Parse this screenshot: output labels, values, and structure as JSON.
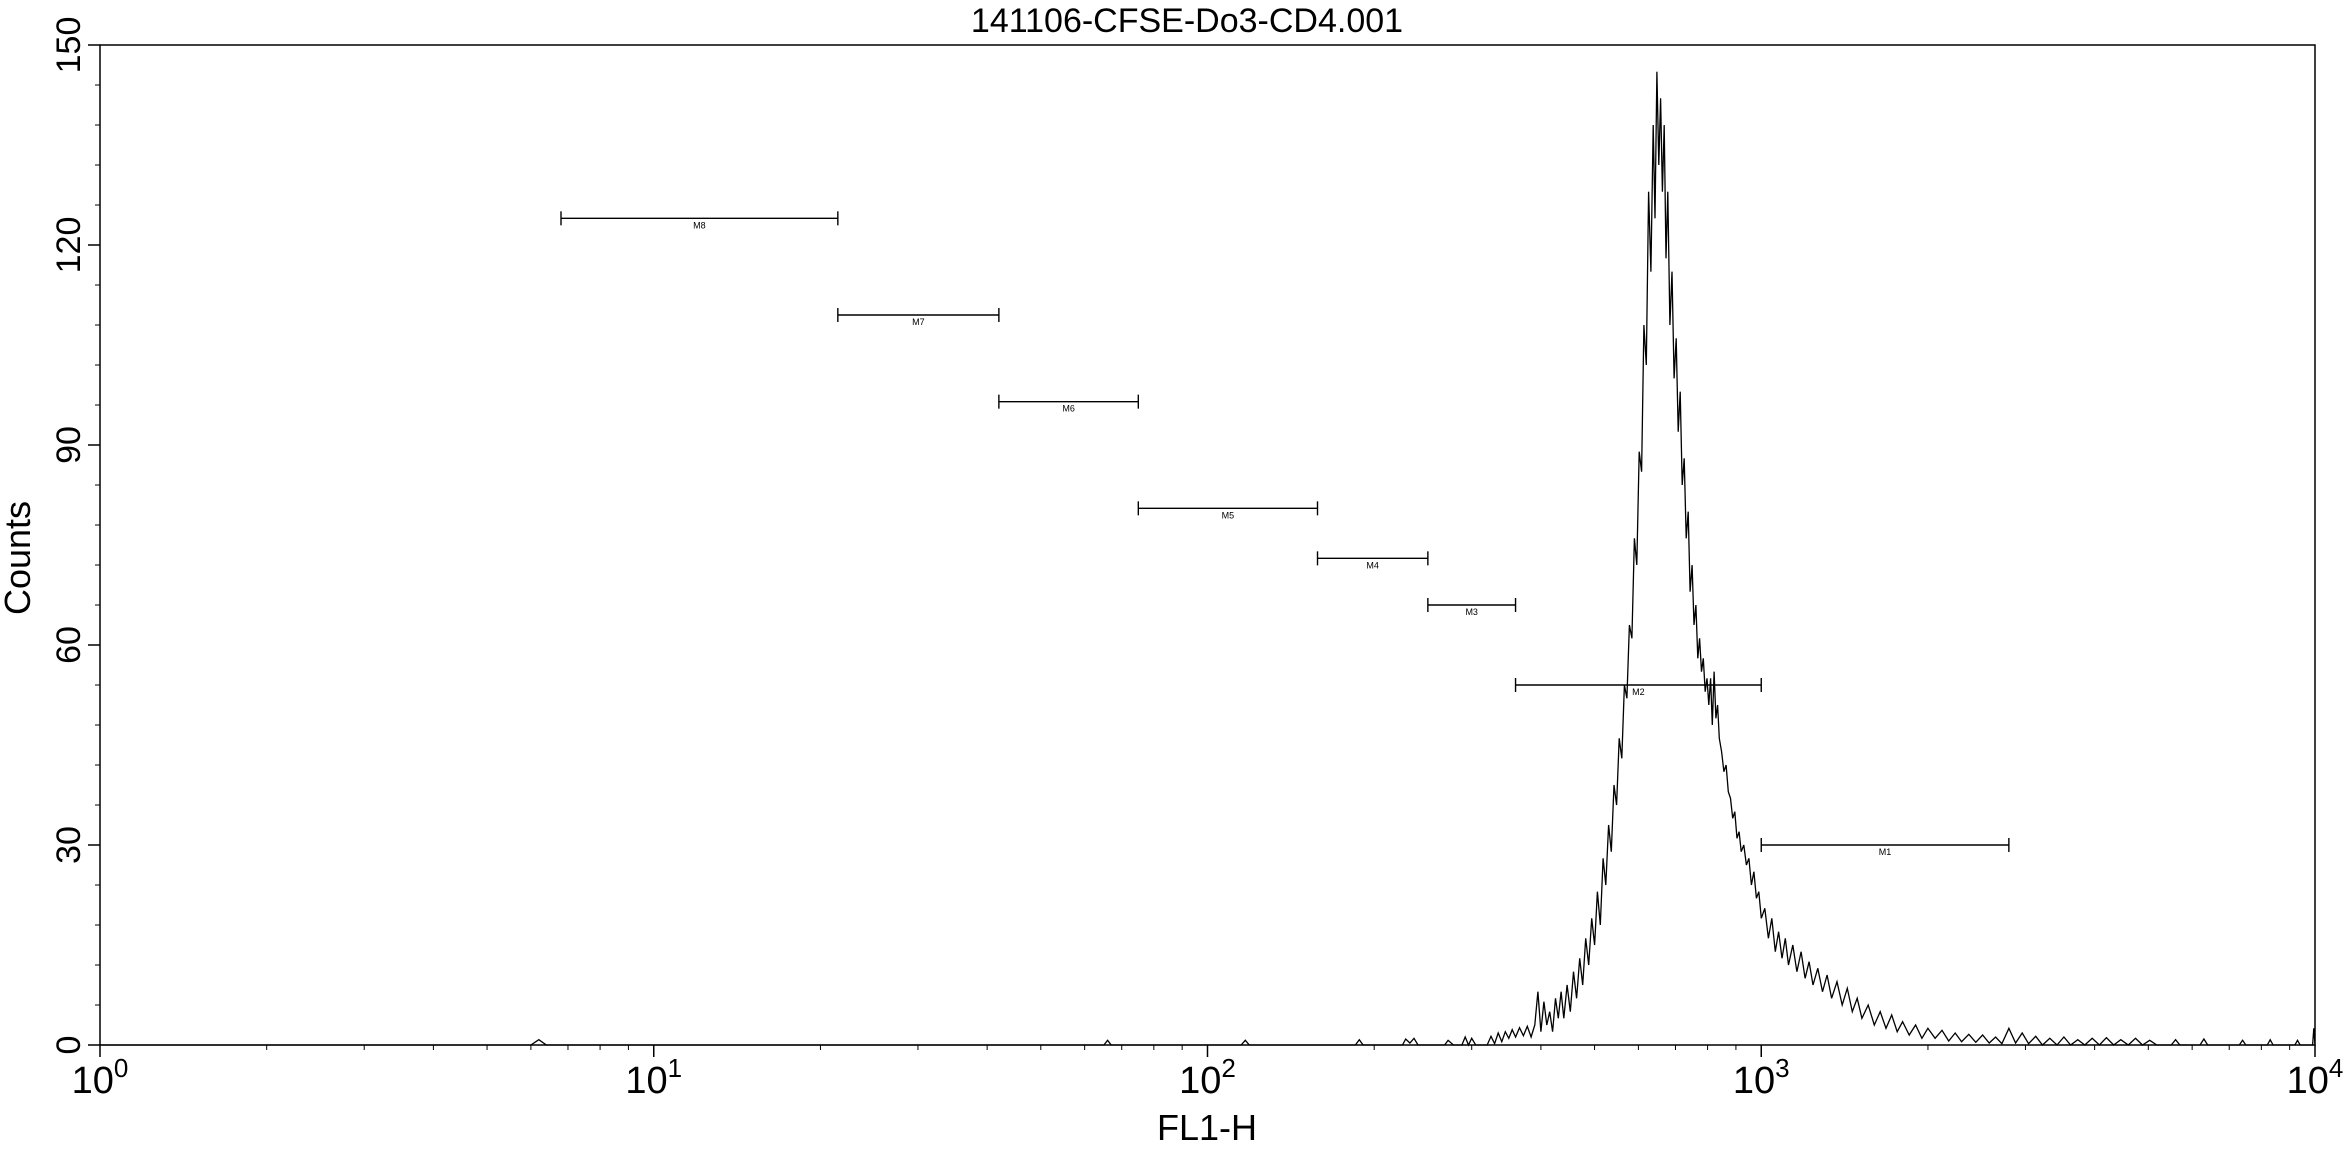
{
  "chart_data": {
    "type": "line",
    "title": "141106-CFSE-Do3-CD4.001",
    "xlabel": "FL1-H",
    "ylabel": "Counts",
    "x_scale": "log",
    "xlim": [
      1,
      10000
    ],
    "ylim": [
      0,
      150
    ],
    "x_ticks": [
      {
        "value": 1,
        "base": "10",
        "exp": "0"
      },
      {
        "value": 10,
        "base": "10",
        "exp": "1"
      },
      {
        "value": 100,
        "base": "10",
        "exp": "2"
      },
      {
        "value": 1000,
        "base": "10",
        "exp": "3"
      },
      {
        "value": 10000,
        "base": "10",
        "exp": "4"
      }
    ],
    "y_ticks": [
      {
        "value": 0,
        "label": "0"
      },
      {
        "value": 30,
        "label": "30"
      },
      {
        "value": 60,
        "label": "60"
      },
      {
        "value": 90,
        "label": "90"
      },
      {
        "value": 120,
        "label": "120"
      },
      {
        "value": 150,
        "label": "150"
      }
    ],
    "grid": false,
    "legend": "none",
    "line_color": "#000000",
    "markers": [
      {
        "label": "M1",
        "x_start": 1000,
        "x_end": 2800,
        "y": 30
      },
      {
        "label": "M2",
        "x_start": 360,
        "x_end": 1000,
        "y": 54
      },
      {
        "label": "M3",
        "x_start": 250,
        "x_end": 360,
        "y": 66
      },
      {
        "label": "M4",
        "x_start": 158,
        "x_end": 250,
        "y": 73
      },
      {
        "label": "M5",
        "x_start": 75,
        "x_end": 158,
        "y": 80.5
      },
      {
        "label": "M6",
        "x_start": 42,
        "x_end": 75,
        "y": 96.5
      },
      {
        "label": "M7",
        "x_start": 21.5,
        "x_end": 42,
        "y": 109.5
      },
      {
        "label": "M8",
        "x_start": 6.8,
        "x_end": 21.5,
        "y": 124
      }
    ],
    "series": [
      {
        "points": [
          [
            1,
            0
          ],
          [
            6.0,
            0
          ],
          [
            6.2,
            0.8
          ],
          [
            6.4,
            0
          ],
          [
            65,
            0
          ],
          [
            66,
            0.7
          ],
          [
            67,
            0
          ],
          [
            115,
            0
          ],
          [
            117,
            0.7
          ],
          [
            119,
            0
          ],
          [
            185,
            0
          ],
          [
            188,
            0.8
          ],
          [
            191,
            0
          ],
          [
            225,
            0
          ],
          [
            228,
            0.9
          ],
          [
            232,
            0.3
          ],
          [
            236,
            1.0
          ],
          [
            240,
            0
          ],
          [
            268,
            0
          ],
          [
            272,
            0.7
          ],
          [
            278,
            0
          ],
          [
            288,
            0
          ],
          [
            292,
            1.2
          ],
          [
            296,
            0
          ],
          [
            300,
            1.0
          ],
          [
            305,
            0
          ],
          [
            320,
            0
          ],
          [
            325,
            1.3
          ],
          [
            330,
            0.2
          ],
          [
            335,
            1.8
          ],
          [
            340,
            0.5
          ],
          [
            345,
            2.0
          ],
          [
            350,
            1.0
          ],
          [
            355,
            2.3
          ],
          [
            360,
            1.2
          ],
          [
            366,
            2.6
          ],
          [
            372,
            1.4
          ],
          [
            378,
            2.8
          ],
          [
            384,
            1.2
          ],
          [
            390,
            3.0
          ],
          [
            395,
            8.0
          ],
          [
            400,
            2.0
          ],
          [
            405,
            6.5
          ],
          [
            410,
            3.0
          ],
          [
            415,
            5.0
          ],
          [
            420,
            2.0
          ],
          [
            425,
            7.0
          ],
          [
            430,
            4.0
          ],
          [
            435,
            8.0
          ],
          [
            440,
            4.0
          ],
          [
            446,
            9.0
          ],
          [
            452,
            5.0
          ],
          [
            458,
            11.0
          ],
          [
            464,
            7.0
          ],
          [
            470,
            13.0
          ],
          [
            476,
            9.0
          ],
          [
            482,
            16.0
          ],
          [
            488,
            12.0
          ],
          [
            494,
            19.0
          ],
          [
            500,
            15.0
          ],
          [
            506,
            23.0
          ],
          [
            512,
            18.0
          ],
          [
            518,
            28.0
          ],
          [
            524,
            24.0
          ],
          [
            530,
            33.0
          ],
          [
            536,
            29.0
          ],
          [
            542,
            39.0
          ],
          [
            548,
            36.0
          ],
          [
            554,
            46.0
          ],
          [
            560,
            43.0
          ],
          [
            566,
            54.0
          ],
          [
            572,
            52.0
          ],
          [
            578,
            63.0
          ],
          [
            584,
            61.0
          ],
          [
            590,
            76.0
          ],
          [
            596,
            72.0
          ],
          [
            602,
            89.0
          ],
          [
            608,
            86.0
          ],
          [
            614,
            108.0
          ],
          [
            620,
            102.0
          ],
          [
            626,
            128.0
          ],
          [
            632,
            116.0
          ],
          [
            638,
            138.0
          ],
          [
            643,
            124.0
          ],
          [
            648,
            146.0
          ],
          [
            653,
            132.0
          ],
          [
            658,
            142.0
          ],
          [
            663,
            128.0
          ],
          [
            668,
            138.0
          ],
          [
            673,
            118.0
          ],
          [
            678,
            128.0
          ],
          [
            684,
            108.0
          ],
          [
            690,
            116.0
          ],
          [
            696,
            100.0
          ],
          [
            702,
            106.0
          ],
          [
            708,
            92.0
          ],
          [
            714,
            98.0
          ],
          [
            720,
            84.0
          ],
          [
            726,
            88.0
          ],
          [
            732,
            76.0
          ],
          [
            738,
            80.0
          ],
          [
            744,
            68.0
          ],
          [
            750,
            72.0
          ],
          [
            756,
            63.0
          ],
          [
            762,
            66.0
          ],
          [
            768,
            58.0
          ],
          [
            774,
            61.0
          ],
          [
            780,
            56.0
          ],
          [
            786,
            58.0
          ],
          [
            792,
            53.0
          ],
          [
            798,
            55.0
          ],
          [
            804,
            51.0
          ],
          [
            810,
            55.0
          ],
          [
            816,
            48.0
          ],
          [
            822,
            56.0
          ],
          [
            828,
            49.0
          ],
          [
            834,
            51.0
          ],
          [
            840,
            46.0
          ],
          [
            848,
            44.0
          ],
          [
            856,
            41.0
          ],
          [
            864,
            42.0
          ],
          [
            872,
            38.0
          ],
          [
            880,
            37.0
          ],
          [
            888,
            34.0
          ],
          [
            896,
            35.0
          ],
          [
            904,
            31.0
          ],
          [
            912,
            32.0
          ],
          [
            920,
            29.0
          ],
          [
            930,
            30.0
          ],
          [
            940,
            27.0
          ],
          [
            950,
            28.0
          ],
          [
            960,
            24.0
          ],
          [
            970,
            26.0
          ],
          [
            980,
            22.0
          ],
          [
            990,
            23.0
          ],
          [
            1000,
            19.0
          ],
          [
            1015,
            20.5
          ],
          [
            1030,
            16.0
          ],
          [
            1045,
            19.0
          ],
          [
            1060,
            14.0
          ],
          [
            1075,
            17.0
          ],
          [
            1090,
            13.0
          ],
          [
            1105,
            16.0
          ],
          [
            1120,
            12.0
          ],
          [
            1140,
            15.0
          ],
          [
            1160,
            11.0
          ],
          [
            1180,
            14.0
          ],
          [
            1200,
            10.0
          ],
          [
            1220,
            12.5
          ],
          [
            1240,
            9.0
          ],
          [
            1265,
            11.5
          ],
          [
            1290,
            8.0
          ],
          [
            1315,
            10.5
          ],
          [
            1340,
            7.0
          ],
          [
            1370,
            9.5
          ],
          [
            1400,
            6.0
          ],
          [
            1430,
            8.5
          ],
          [
            1460,
            5.0
          ],
          [
            1490,
            7.0
          ],
          [
            1520,
            4.0
          ],
          [
            1560,
            6.0
          ],
          [
            1600,
            3.0
          ],
          [
            1640,
            5.0
          ],
          [
            1680,
            2.5
          ],
          [
            1720,
            4.5
          ],
          [
            1760,
            2.0
          ],
          [
            1800,
            3.5
          ],
          [
            1850,
            1.5
          ],
          [
            1900,
            3.0
          ],
          [
            1950,
            1.0
          ],
          [
            2000,
            2.5
          ],
          [
            2060,
            1.0
          ],
          [
            2120,
            2.2
          ],
          [
            2180,
            0.6
          ],
          [
            2240,
            1.8
          ],
          [
            2300,
            0.5
          ],
          [
            2370,
            1.6
          ],
          [
            2440,
            0.4
          ],
          [
            2510,
            1.5
          ],
          [
            2580,
            0.3
          ],
          [
            2650,
            1.2
          ],
          [
            2720,
            0.2
          ],
          [
            2800,
            2.5
          ],
          [
            2880,
            0.3
          ],
          [
            2960,
            1.8
          ],
          [
            3040,
            0.2
          ],
          [
            3130,
            1.3
          ],
          [
            3220,
            0
          ],
          [
            3320,
            1.0
          ],
          [
            3420,
            0
          ],
          [
            3520,
            1.2
          ],
          [
            3620,
            0
          ],
          [
            3730,
            0.8
          ],
          [
            3840,
            0
          ],
          [
            3960,
            1.0
          ],
          [
            4080,
            0
          ],
          [
            4200,
            1.1
          ],
          [
            4330,
            0
          ],
          [
            4460,
            0.8
          ],
          [
            4600,
            0
          ],
          [
            4740,
            1.0
          ],
          [
            4880,
            0
          ],
          [
            5030,
            0.7
          ],
          [
            5180,
            0
          ],
          [
            5500,
            0
          ],
          [
            5600,
            0.8
          ],
          [
            5700,
            0
          ],
          [
            6200,
            0
          ],
          [
            6300,
            0.9
          ],
          [
            6400,
            0
          ],
          [
            7300,
            0
          ],
          [
            7400,
            0.7
          ],
          [
            7500,
            0
          ],
          [
            8200,
            0
          ],
          [
            8300,
            0.8
          ],
          [
            8400,
            0
          ],
          [
            9200,
            0
          ],
          [
            9300,
            0.7
          ],
          [
            9400,
            0
          ],
          [
            9900,
            0
          ],
          [
            9950,
            2.5
          ],
          [
            10000,
            0
          ]
        ]
      }
    ]
  }
}
